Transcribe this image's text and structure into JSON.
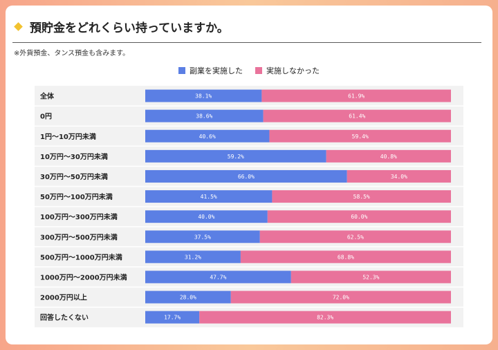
{
  "title": "預貯金をどれくらい持っていますか。",
  "note": "※外貨預金、タンス預金も含みます。",
  "chart_data": {
    "type": "bar",
    "orientation": "horizontal-stacked-100",
    "categories": [
      "全体",
      "0円",
      "1円〜10万円未満",
      "10万円〜30万円未満",
      "30万円〜50万円未満",
      "50万円〜100万円未満",
      "100万円〜300万円未満",
      "300万円〜500万円未満",
      "500万円〜1000万円未満",
      "1000万円〜2000万円未満",
      "2000万円以上",
      "回答したくない"
    ],
    "series": [
      {
        "name": "副業を実施した",
        "color": "#5b7fe4",
        "values": [
          38.1,
          38.6,
          40.6,
          59.2,
          66.0,
          41.5,
          40.0,
          37.5,
          31.2,
          47.7,
          28.0,
          17.7
        ]
      },
      {
        "name": "実施しなかった",
        "color": "#e9739b",
        "values": [
          61.9,
          61.4,
          59.4,
          40.8,
          34.0,
          58.5,
          60.0,
          62.5,
          68.8,
          52.3,
          72.0,
          82.3
        ]
      }
    ],
    "value_suffix": "%",
    "legend_position": "top-center"
  }
}
